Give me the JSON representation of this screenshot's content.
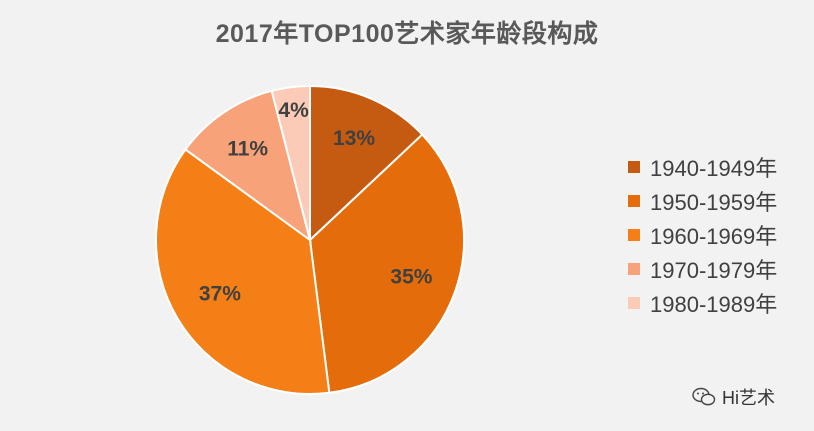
{
  "chart_data": {
    "type": "pie",
    "title": "2017年TOP100艺术家年龄段构成",
    "categories": [
      "1940-1949年",
      "1950-1959年",
      "1960-1969年",
      "1970-1979年",
      "1980-1989年"
    ],
    "values": [
      13,
      35,
      37,
      11,
      4
    ],
    "labels": [
      "13%",
      "35%",
      "37%",
      "11%",
      "4%"
    ],
    "colors": [
      "#c55a11",
      "#e46c0a",
      "#f47f17",
      "#f8a27a",
      "#fbcbb8"
    ],
    "legend_position": "right"
  },
  "watermark": {
    "text": "Hi艺术",
    "icon": "wechat-icon"
  }
}
